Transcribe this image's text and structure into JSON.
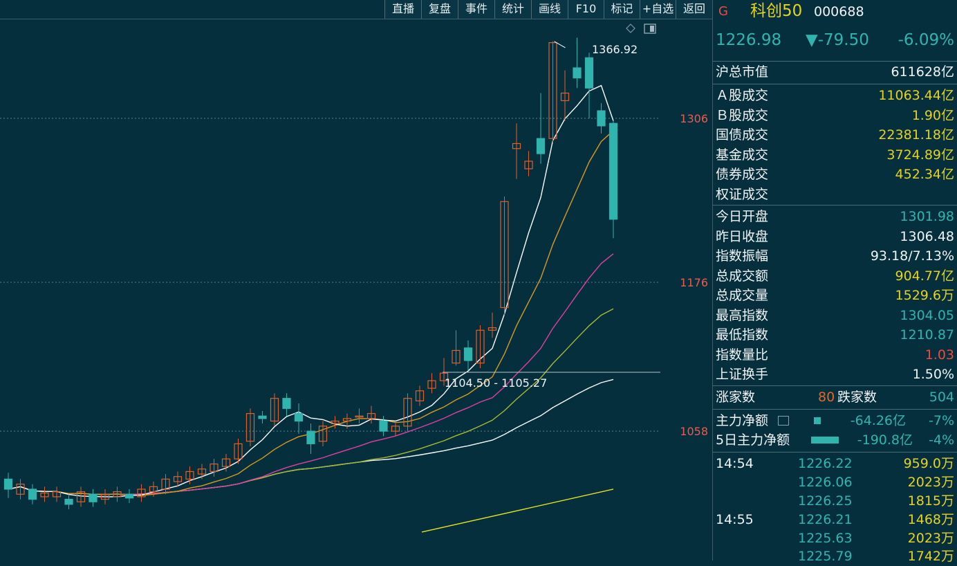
{
  "toolbar": [
    "直播",
    "复盘",
    "事件",
    "统计",
    "画线",
    "F10",
    "标记",
    "+自选",
    "返回"
  ],
  "chart": {
    "y_ticks": [
      {
        "value": 1306,
        "label": "1306"
      },
      {
        "value": 1176,
        "label": "1176"
      },
      {
        "value": 1058,
        "label": "1058"
      }
    ],
    "high_label": "1366.92",
    "range_label": "1104.50 - 1105.27",
    "colors": {
      "up": "#e0602a",
      "down": "#2fb5ae",
      "ma5": "#ffffff",
      "ma10": "#d99a1e",
      "ma20": "#e040a0",
      "ma30": "#a8b830",
      "ma60": "#ffffff",
      "ma120": "#e6e020",
      "grid": "#5a7f8a",
      "axis_label": "#f05a4a"
    }
  },
  "header": {
    "mark": "G",
    "name": "科创50",
    "code": "000688",
    "price": "1226.98",
    "change": "▼-79.50",
    "pct": "-6.09%"
  },
  "market": {
    "total_cap": {
      "label": "沪总市值",
      "value": "611628亿"
    },
    "rows": [
      {
        "label": "Ａ股成交",
        "value": "11063.44亿"
      },
      {
        "label": "Ｂ股成交",
        "value": "1.90亿"
      },
      {
        "label": "国债成交",
        "value": "22381.18亿"
      },
      {
        "label": "基金成交",
        "value": "3724.89亿"
      },
      {
        "label": "债券成交",
        "value": "452.34亿"
      },
      {
        "label": "权证成交",
        "value": ""
      }
    ]
  },
  "stats": [
    {
      "label": "今日开盘",
      "value": "1301.98",
      "color": "cyan"
    },
    {
      "label": "昨日收盘",
      "value": "1306.48",
      "color": "white"
    },
    {
      "label": "指数振幅",
      "value": "93.18/7.13%",
      "color": "white"
    },
    {
      "label": "总成交额",
      "value": "904.77亿",
      "color": "yellow"
    },
    {
      "label": "总成交量",
      "value": "1529.6万",
      "color": "yellow"
    },
    {
      "label": "最高指数",
      "value": "1304.05",
      "color": "cyan"
    },
    {
      "label": "最低指数",
      "value": "1210.87",
      "color": "cyan"
    },
    {
      "label": "指数量比",
      "value": "1.03",
      "color": "red"
    },
    {
      "label": "上证换手",
      "value": "1.50%",
      "color": "white"
    }
  ],
  "breadth": {
    "up_label": "涨家数",
    "up_value": "80",
    "down_label": "跌家数",
    "down_value": "504"
  },
  "flow": [
    {
      "label": "主力净额",
      "value": "-64.26亿",
      "pct": "-7%"
    },
    {
      "label": "5日主力净额",
      "value": "-190.8亿",
      "pct": "-4%"
    }
  ],
  "ticks": [
    {
      "time": "14:54",
      "price": "1226.22",
      "vol": "959.0万"
    },
    {
      "time": "",
      "price": "1226.06",
      "vol": "2023万"
    },
    {
      "time": "",
      "price": "1226.25",
      "vol": "1815万"
    },
    {
      "time": "14:55",
      "price": "1226.21",
      "vol": "1468万"
    },
    {
      "time": "",
      "price": "1225.63",
      "vol": "2023万"
    },
    {
      "time": "",
      "price": "1225.79",
      "vol": "1742万"
    }
  ],
  "candles": [
    [
      1020,
      1012,
      1005,
      1025
    ],
    [
      1008,
      1016,
      1004,
      1020
    ],
    [
      1012,
      1004,
      1000,
      1016
    ],
    [
      1006,
      1009,
      1002,
      1014
    ],
    [
      1006,
      1010,
      1002,
      1014
    ],
    [
      1004,
      1000,
      996,
      1008
    ],
    [
      1002,
      1010,
      998,
      1014
    ],
    [
      1008,
      1002,
      998,
      1012
    ],
    [
      1004,
      1008,
      1000,
      1012
    ],
    [
      1006,
      1010,
      1002,
      1014
    ],
    [
      1008,
      1005,
      1001,
      1012
    ],
    [
      1006,
      1012,
      1002,
      1016
    ],
    [
      1010,
      1014,
      1006,
      1018
    ],
    [
      1012,
      1020,
      1008,
      1024
    ],
    [
      1018,
      1022,
      1014,
      1026
    ],
    [
      1020,
      1026,
      1016,
      1030
    ],
    [
      1024,
      1028,
      1020,
      1032
    ],
    [
      1026,
      1032,
      1022,
      1036
    ],
    [
      1030,
      1036,
      1026,
      1040
    ],
    [
      1036,
      1048,
      1032,
      1052
    ],
    [
      1050,
      1072,
      1046,
      1076
    ],
    [
      1070,
      1068,
      1064,
      1074
    ],
    [
      1066,
      1084,
      1062,
      1088
    ],
    [
      1084,
      1076,
      1070,
      1088
    ],
    [
      1072,
      1066,
      1056,
      1080
    ],
    [
      1058,
      1048,
      1040,
      1064
    ],
    [
      1050,
      1062,
      1046,
      1066
    ],
    [
      1064,
      1066,
      1060,
      1070
    ],
    [
      1066,
      1068,
      1060,
      1072
    ],
    [
      1070,
      1070,
      1064,
      1076
    ],
    [
      1068,
      1072,
      1064,
      1078
    ],
    [
      1066,
      1058,
      1054,
      1070
    ],
    [
      1058,
      1062,
      1054,
      1064
    ],
    [
      1062,
      1084,
      1058,
      1088
    ],
    [
      1082,
      1090,
      1078,
      1094
    ],
    [
      1092,
      1098,
      1088,
      1104
    ],
    [
      1098,
      1104,
      1094,
      1116
    ],
    [
      1112,
      1122,
      1110,
      1138
    ],
    [
      1124,
      1114,
      1106,
      1130
    ],
    [
      1112,
      1138,
      1108,
      1142
    ],
    [
      1138,
      1140,
      1132,
      1152
    ],
    [
      1156,
      1240,
      1150,
      1244
    ],
    [
      1282,
      1286,
      1258,
      1302
    ],
    [
      1266,
      1272,
      1260,
      1280
    ],
    [
      1290,
      1278,
      1270,
      1326
    ],
    [
      1290,
      1366,
      1286,
      1367
    ],
    [
      1320,
      1326,
      1304,
      1344
    ],
    [
      1346,
      1338,
      1330,
      1370
    ],
    [
      1354,
      1330,
      1306,
      1358
    ],
    [
      1312,
      1300,
      1294,
      1318
    ],
    [
      1302,
      1226,
      1211,
      1304
    ]
  ]
}
